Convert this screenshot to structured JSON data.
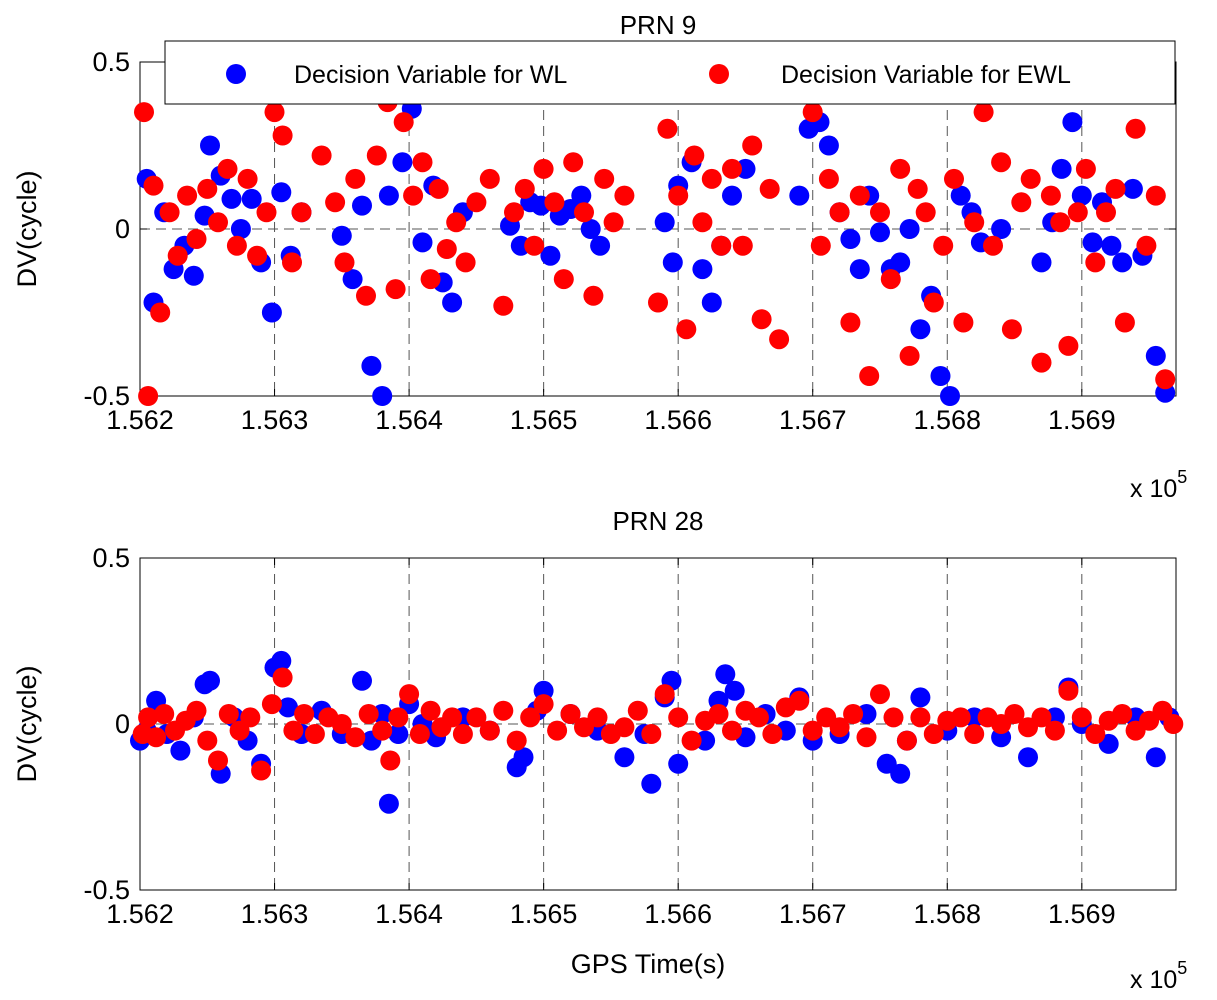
{
  "chart_data": [
    {
      "type": "scatter",
      "title": "PRN 9",
      "xlabel": "",
      "ylabel": "DV(cycle)",
      "x_multiplier_label": "x 10",
      "x_multiplier_exp": "5",
      "xlim": [
        1.562,
        1.5697
      ],
      "ylim": [
        -0.5,
        0.5
      ],
      "xticks": [
        1.562,
        1.563,
        1.564,
        1.565,
        1.566,
        1.567,
        1.568,
        1.569
      ],
      "xtick_labels": [
        "1.562",
        "1.563",
        "1.564",
        "1.565",
        "1.566",
        "1.567",
        "1.568",
        "1.569"
      ],
      "yticks": [
        -0.5,
        0,
        0.5
      ],
      "ytick_labels": [
        "-0.5",
        "0",
        "0.5"
      ],
      "grid": true,
      "legend": "top-center",
      "series": [
        {
          "name": "Decision Variable for WL",
          "color": "#0000ff",
          "x": [
            1.56205,
            1.5621,
            1.56218,
            1.56225,
            1.56233,
            1.5624,
            1.56248,
            1.56252,
            1.5626,
            1.56268,
            1.56275,
            1.56283,
            1.5629,
            1.56298,
            1.56305,
            1.56312,
            1.5632,
            1.5635,
            1.56358,
            1.56365,
            1.56372,
            1.5638,
            1.56385,
            1.56395,
            1.56402,
            1.5641,
            1.56418,
            1.56425,
            1.56432,
            1.5644,
            1.56475,
            1.56483,
            1.5649,
            1.56498,
            1.56505,
            1.56512,
            1.5652,
            1.56528,
            1.56535,
            1.56542,
            1.5659,
            1.56596,
            1.566,
            1.5661,
            1.56618,
            1.56625,
            1.56632,
            1.5664,
            1.5665,
            1.5669,
            1.56697,
            1.56705,
            1.56712,
            1.5672,
            1.56728,
            1.56735,
            1.56742,
            1.5675,
            1.56758,
            1.56765,
            1.56772,
            1.5678,
            1.56788,
            1.56795,
            1.56802,
            1.5681,
            1.56818,
            1.56825,
            1.5684,
            1.5687,
            1.56878,
            1.56885,
            1.56893,
            1.569,
            1.56908,
            1.56915,
            1.56922,
            1.5693,
            1.56938,
            1.56945,
            1.56955,
            1.56962
          ],
          "y": [
            0.15,
            -0.22,
            0.05,
            -0.12,
            -0.05,
            -0.14,
            0.04,
            0.25,
            0.16,
            0.09,
            0.0,
            0.09,
            -0.1,
            -0.25,
            0.11,
            -0.08,
            0.05,
            -0.02,
            -0.15,
            0.07,
            -0.41,
            -0.5,
            0.1,
            0.2,
            0.36,
            -0.04,
            0.13,
            -0.16,
            -0.22,
            0.05,
            0.01,
            -0.05,
            0.08,
            0.07,
            -0.08,
            0.04,
            0.06,
            0.1,
            0.0,
            -0.05,
            0.02,
            -0.1,
            0.13,
            0.2,
            -0.12,
            -0.22,
            -0.05,
            0.1,
            0.18,
            0.1,
            0.3,
            0.32,
            0.25,
            0.05,
            -0.03,
            -0.12,
            0.1,
            -0.01,
            -0.12,
            -0.1,
            0.0,
            -0.3,
            -0.2,
            -0.44,
            -0.5,
            0.1,
            0.05,
            -0.04,
            0.0,
            -0.1,
            0.02,
            0.18,
            0.32,
            0.1,
            -0.04,
            0.08,
            -0.05,
            -0.1,
            0.12,
            -0.08,
            -0.38,
            -0.49
          ]
        },
        {
          "name": "Decision Variable for EWL",
          "color": "#ff0000",
          "x": [
            1.56203,
            1.56206,
            1.5621,
            1.56215,
            1.56222,
            1.56228,
            1.56235,
            1.56242,
            1.5625,
            1.56258,
            1.56265,
            1.56272,
            1.5628,
            1.56287,
            1.56294,
            1.563,
            1.56306,
            1.56313,
            1.5632,
            1.56335,
            1.56345,
            1.56352,
            1.5636,
            1.56368,
            1.56376,
            1.56384,
            1.5639,
            1.56396,
            1.56403,
            1.5641,
            1.56416,
            1.56422,
            1.56428,
            1.56435,
            1.56442,
            1.5645,
            1.5646,
            1.5647,
            1.56478,
            1.56486,
            1.56493,
            1.565,
            1.56508,
            1.56515,
            1.56522,
            1.5653,
            1.56537,
            1.56545,
            1.56552,
            1.5656,
            1.56585,
            1.56592,
            1.566,
            1.56606,
            1.56612,
            1.56618,
            1.56625,
            1.56632,
            1.5664,
            1.56648,
            1.56655,
            1.56662,
            1.56668,
            1.56675,
            1.567,
            1.56706,
            1.56712,
            1.5672,
            1.56728,
            1.56735,
            1.56742,
            1.5675,
            1.56758,
            1.56765,
            1.56772,
            1.56778,
            1.56784,
            1.5679,
            1.56797,
            1.56805,
            1.56812,
            1.5682,
            1.56827,
            1.56834,
            1.5684,
            1.56848,
            1.56855,
            1.56862,
            1.5687,
            1.56877,
            1.56884,
            1.5689,
            1.56897,
            1.56903,
            1.5691,
            1.56918,
            1.56925,
            1.56932,
            1.5694,
            1.56948,
            1.56955,
            1.56962
          ],
          "y": [
            0.35,
            -0.5,
            0.13,
            -0.25,
            0.05,
            -0.08,
            0.1,
            -0.03,
            0.12,
            0.02,
            0.18,
            -0.05,
            0.15,
            -0.08,
            0.05,
            0.35,
            0.28,
            -0.1,
            0.05,
            0.22,
            0.08,
            -0.1,
            0.15,
            -0.2,
            0.22,
            0.38,
            -0.18,
            0.32,
            0.1,
            0.2,
            -0.15,
            0.12,
            -0.06,
            0.02,
            -0.1,
            0.08,
            0.15,
            -0.23,
            0.05,
            0.12,
            -0.05,
            0.18,
            0.08,
            -0.15,
            0.2,
            0.05,
            -0.2,
            0.15,
            0.02,
            0.1,
            -0.22,
            0.3,
            0.1,
            -0.3,
            0.22,
            0.02,
            0.15,
            -0.05,
            0.18,
            -0.05,
            0.25,
            -0.27,
            0.12,
            -0.33,
            0.35,
            -0.05,
            0.15,
            0.05,
            -0.28,
            0.1,
            -0.44,
            0.05,
            -0.15,
            0.18,
            -0.38,
            0.12,
            0.05,
            -0.22,
            -0.05,
            0.15,
            -0.28,
            0.02,
            0.35,
            -0.05,
            0.2,
            -0.3,
            0.08,
            0.15,
            -0.4,
            0.1,
            0.02,
            -0.35,
            0.05,
            0.18,
            -0.1,
            0.05,
            0.12,
            -0.28,
            0.3,
            -0.05,
            0.1,
            -0.45
          ]
        }
      ]
    },
    {
      "type": "scatter",
      "title": "PRN 28",
      "xlabel": "GPS Time(s)",
      "ylabel": "DV(cycle)",
      "x_multiplier_label": "x 10",
      "x_multiplier_exp": "5",
      "xlim": [
        1.562,
        1.5697
      ],
      "ylim": [
        -0.5,
        0.5
      ],
      "xticks": [
        1.562,
        1.563,
        1.564,
        1.565,
        1.566,
        1.567,
        1.568,
        1.569
      ],
      "xtick_labels": [
        "1.562",
        "1.563",
        "1.564",
        "1.565",
        "1.566",
        "1.567",
        "1.568",
        "1.569"
      ],
      "yticks": [
        -0.5,
        0,
        0.5
      ],
      "ytick_labels": [
        "-0.5",
        "0",
        "0.5"
      ],
      "grid": true,
      "series": [
        {
          "name": "Decision Variable for WL",
          "color": "#0000ff",
          "x": [
            1.562,
            1.56205,
            1.56212,
            1.5622,
            1.5623,
            1.5624,
            1.56248,
            1.56252,
            1.5626,
            1.5627,
            1.5628,
            1.5629,
            1.563,
            1.56305,
            1.5631,
            1.5632,
            1.56335,
            1.5635,
            1.56365,
            1.56372,
            1.5638,
            1.56385,
            1.56392,
            1.564,
            1.5641,
            1.5642,
            1.5644,
            1.5646,
            1.5648,
            1.56485,
            1.56495,
            1.565,
            1.5652,
            1.5654,
            1.5656,
            1.56575,
            1.5658,
            1.5659,
            1.56595,
            1.566,
            1.5662,
            1.5663,
            1.56635,
            1.56642,
            1.5665,
            1.56665,
            1.5668,
            1.5669,
            1.567,
            1.5672,
            1.5674,
            1.56755,
            1.56765,
            1.5677,
            1.5678,
            1.568,
            1.5682,
            1.5684,
            1.5686,
            1.5688,
            1.5689,
            1.569,
            1.5692,
            1.5694,
            1.56955,
            1.56965
          ],
          "y": [
            -0.05,
            -0.02,
            0.07,
            -0.03,
            -0.08,
            0.02,
            0.12,
            0.13,
            -0.15,
            0.02,
            -0.05,
            -0.12,
            0.17,
            0.19,
            0.05,
            -0.03,
            0.04,
            -0.03,
            0.13,
            -0.05,
            0.03,
            -0.24,
            -0.03,
            0.06,
            0.0,
            -0.04,
            0.02,
            -0.02,
            -0.13,
            -0.1,
            0.04,
            0.1,
            0.03,
            -0.02,
            -0.1,
            -0.03,
            -0.18,
            0.08,
            0.13,
            -0.12,
            -0.05,
            0.07,
            0.15,
            0.1,
            -0.04,
            0.03,
            -0.02,
            0.08,
            -0.05,
            -0.03,
            0.03,
            -0.12,
            -0.15,
            -0.05,
            0.08,
            -0.02,
            0.02,
            -0.04,
            -0.1,
            0.02,
            0.11,
            0.0,
            -0.06,
            0.02,
            -0.1,
            0.02
          ]
        },
        {
          "name": "Decision Variable for EWL",
          "color": "#ff0000",
          "x": [
            1.56202,
            1.56206,
            1.56212,
            1.56218,
            1.56226,
            1.56234,
            1.56242,
            1.5625,
            1.56258,
            1.56266,
            1.56274,
            1.56282,
            1.5629,
            1.56298,
            1.56306,
            1.56314,
            1.56322,
            1.5633,
            1.5634,
            1.5635,
            1.5636,
            1.5637,
            1.5638,
            1.56386,
            1.56392,
            1.564,
            1.56408,
            1.56416,
            1.56424,
            1.56432,
            1.5644,
            1.5645,
            1.5646,
            1.5647,
            1.5648,
            1.5649,
            1.565,
            1.5651,
            1.5652,
            1.5653,
            1.5654,
            1.5655,
            1.5656,
            1.5657,
            1.5658,
            1.5659,
            1.566,
            1.5661,
            1.5662,
            1.5663,
            1.5664,
            1.5665,
            1.5666,
            1.5667,
            1.5668,
            1.5669,
            1.567,
            1.5671,
            1.5672,
            1.5673,
            1.5674,
            1.5675,
            1.5676,
            1.5677,
            1.5678,
            1.5679,
            1.568,
            1.5681,
            1.5682,
            1.5683,
            1.5684,
            1.5685,
            1.5686,
            1.5687,
            1.5688,
            1.5689,
            1.569,
            1.5691,
            1.5692,
            1.5693,
            1.5694,
            1.5695,
            1.5696,
            1.56968
          ],
          "y": [
            -0.03,
            0.02,
            -0.04,
            0.03,
            -0.02,
            0.01,
            0.04,
            -0.05,
            -0.11,
            0.03,
            -0.02,
            0.02,
            -0.14,
            0.06,
            0.14,
            -0.02,
            0.03,
            -0.03,
            0.02,
            0.0,
            -0.04,
            0.03,
            -0.02,
            -0.11,
            0.02,
            0.09,
            -0.03,
            0.04,
            -0.01,
            0.02,
            -0.03,
            0.02,
            -0.02,
            0.04,
            -0.05,
            0.02,
            0.06,
            -0.02,
            0.03,
            -0.01,
            0.02,
            -0.03,
            -0.01,
            0.04,
            -0.03,
            0.09,
            0.02,
            -0.05,
            0.01,
            0.03,
            -0.02,
            0.04,
            0.02,
            -0.03,
            0.05,
            0.07,
            -0.02,
            0.02,
            -0.01,
            0.03,
            -0.04,
            0.09,
            0.02,
            -0.05,
            0.02,
            -0.03,
            0.01,
            0.02,
            -0.03,
            0.02,
            0.0,
            0.03,
            -0.01,
            0.02,
            -0.02,
            0.1,
            0.02,
            -0.03,
            0.01,
            0.03,
            -0.02,
            0.01,
            0.04,
            0.0
          ]
        }
      ]
    }
  ]
}
